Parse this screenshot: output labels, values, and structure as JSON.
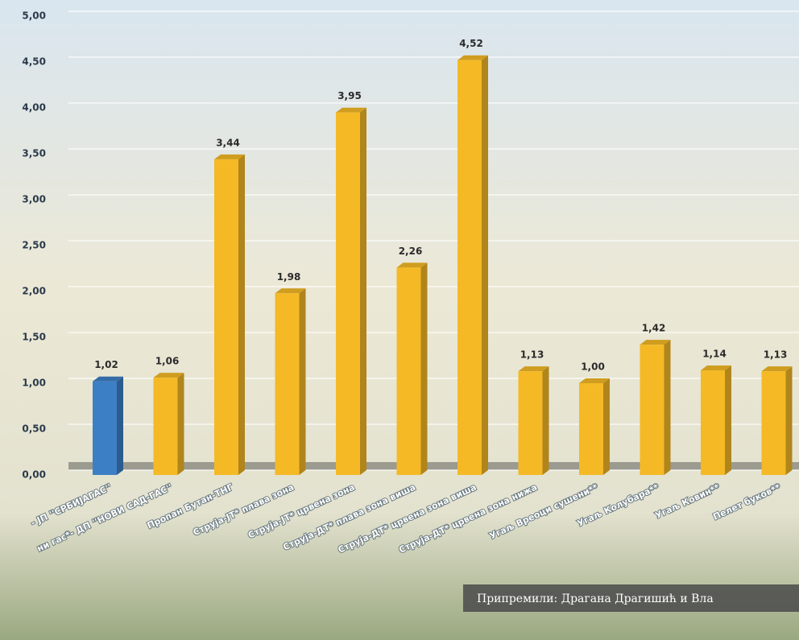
{
  "chart_data": {
    "type": "bar3d",
    "categories": [
      "- ЈП ''СРБИЈАГАС''",
      "ни гас*- ДП ''НОВИ САД-ГАС''",
      "Пропан Бутан-ТНГ",
      "Струја-ЈТ*  плава зона",
      "Струја-ЈТ*  црвена зона",
      "Струја-ДТ*  плава зона   виша",
      "Струја-ДТ*  црвена зона виша",
      "Струја-ДТ*  црвена зона нижа",
      "Угаљ Вреоци сушени**",
      "Угаљ Колубара**",
      "Угаљ Ковин**",
      "Пелет буков**"
    ],
    "values": [
      1.02,
      1.06,
      3.44,
      1.98,
      3.95,
      2.26,
      4.52,
      1.13,
      1.0,
      1.42,
      1.14,
      1.13
    ],
    "value_labels": [
      "1,02",
      "1,06",
      "3,44",
      "1,98",
      "3,95",
      "2,26",
      "4,52",
      "1,13",
      "1,00",
      "1,42",
      "1,14",
      "1,13"
    ],
    "colors": [
      "#3d7fc4",
      "#f4b925",
      "#f4b925",
      "#f4b925",
      "#f4b925",
      "#f4b925",
      "#f4b925",
      "#f4b925",
      "#f4b925",
      "#f4b925",
      "#f4b925",
      "#f4b925"
    ],
    "ylim": [
      0,
      5
    ],
    "yticks": [
      {
        "value": 0,
        "label": "0,00"
      },
      {
        "value": 0.5,
        "label": "0,50"
      },
      {
        "value": 1,
        "label": "1,00"
      },
      {
        "value": 1.5,
        "label": "1,50"
      },
      {
        "value": 2,
        "label": "2,00"
      },
      {
        "value": 2.5,
        "label": "2,50"
      },
      {
        "value": 3,
        "label": "3,00"
      },
      {
        "value": 3.5,
        "label": "3,50"
      },
      {
        "value": 4,
        "label": "4,00"
      },
      {
        "value": 4.5,
        "label": "4,50"
      },
      {
        "value": 5,
        "label": "5,00"
      }
    ],
    "grid": true,
    "footnote": "Припремили: Драгана Драгишић и Вла"
  }
}
